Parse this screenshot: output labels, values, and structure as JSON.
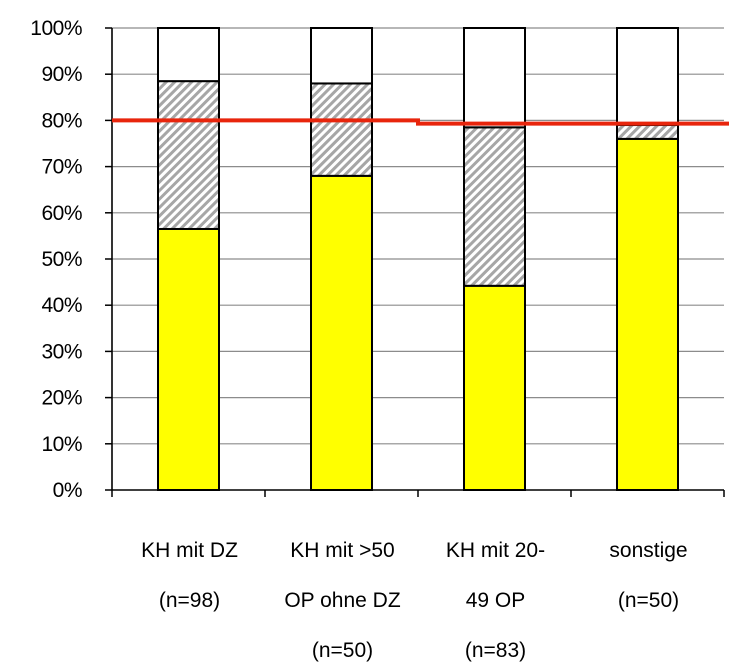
{
  "chart_data": {
    "type": "bar",
    "stacked": true,
    "categories": [
      [
        "KH mit DZ",
        "(n=98)"
      ],
      [
        "KH mit >50",
        "OP ohne DZ",
        "(n=50)"
      ],
      [
        "KH mit 20-",
        "49 OP",
        "(n=83)"
      ],
      [
        "sonstige",
        "(n=50)"
      ]
    ],
    "series": [
      {
        "values": [
          56.5,
          68,
          44.2,
          76
        ],
        "color": "#ffff00",
        "pattern": "solid"
      },
      {
        "values": [
          32,
          20,
          34.3,
          3
        ],
        "color": "#a6a6a6",
        "pattern": "diagonal-hatch"
      },
      {
        "values": [
          11.5,
          12,
          21.5,
          21
        ],
        "color": "#ffffff",
        "pattern": "solid"
      }
    ],
    "reference_line": {
      "segments": [
        80,
        79.3
      ],
      "color": "#e8250c"
    },
    "y_ticks": [
      "0%",
      "10%",
      "20%",
      "30%",
      "40%",
      "50%",
      "60%",
      "70%",
      "80%",
      "90%",
      "100%"
    ],
    "ylim": [
      0,
      100
    ],
    "grid": true,
    "title": "",
    "xlabel": "",
    "ylabel": ""
  }
}
